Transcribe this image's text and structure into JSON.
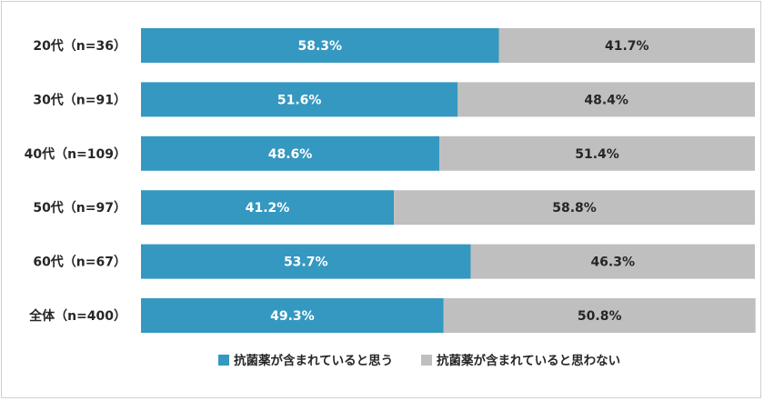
{
  "chart_data": {
    "type": "bar",
    "orientation": "horizontal",
    "stacked": true,
    "normalized": true,
    "categories": [
      "20代（n=36）",
      "30代（n=91）",
      "40代（n=109）",
      "50代（n=97）",
      "60代（n=67）",
      "全体（n=400）"
    ],
    "series": [
      {
        "name": "抗菌薬が含まれていると思う",
        "color": "#3598c0",
        "label_color": "#ffffff",
        "values": [
          58.3,
          51.6,
          48.6,
          41.2,
          53.7,
          49.3
        ],
        "labels": [
          "58.3%",
          "51.6%",
          "48.6%",
          "41.2%",
          "53.7%",
          "49.3%"
        ]
      },
      {
        "name": "抗菌薬が含まれていると思わない",
        "color": "#bfbfbf",
        "label_color": "#262626",
        "values": [
          41.7,
          48.4,
          51.4,
          58.8,
          46.3,
          50.8
        ],
        "labels": [
          "41.7%",
          "48.4%",
          "51.4%",
          "58.8%",
          "46.3%",
          "50.8%"
        ]
      }
    ],
    "xlim": [
      0,
      100
    ],
    "grid": false,
    "legend_position": "bottom"
  }
}
